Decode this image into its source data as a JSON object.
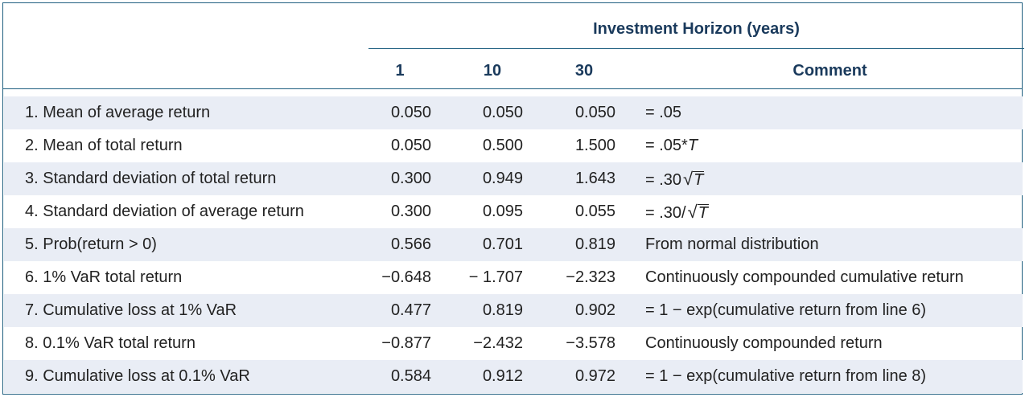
{
  "table": {
    "group_header": "Investment Horizon (years)",
    "columns": [
      "1",
      "10",
      "30",
      "Comment"
    ],
    "rows": [
      {
        "label": "1. Mean of average return",
        "v1": "0.050",
        "v2": "0.050",
        "v3": "0.050",
        "comment": "= .05"
      },
      {
        "label": "2. Mean of total return",
        "v1": "0.050",
        "v2": "0.500",
        "v3": "1.500",
        "comment_prefix": "= .05*",
        "comment_var": "T"
      },
      {
        "label": "3. Standard deviation of total return",
        "v1": "0.300",
        "v2": "0.949",
        "v3": "1.643",
        "comment_prefix": "= .30",
        "comment_sqrt": "√",
        "comment_var": "T"
      },
      {
        "label": "4. Standard deviation of average return",
        "v1": "0.300",
        "v2": "0.095",
        "v3": "0.055",
        "comment_prefix": "= .30/",
        "comment_sqrt": "√",
        "comment_var": "T"
      },
      {
        "label": "5. Prob(return > 0)",
        "v1": "0.566",
        "v2": "0.701",
        "v3": "0.819",
        "comment": "From normal distribution"
      },
      {
        "label": "6. 1% VaR total return",
        "v1": "−0.648",
        "v2": "− 1.707",
        "v3": "−2.323",
        "comment": "Continuously compounded cumulative return"
      },
      {
        "label": "7. Cumulative loss at 1% VaR",
        "v1": "0.477",
        "v2": "0.819",
        "v3": "0.902",
        "comment": "= 1 − exp(cumulative return from line 6)"
      },
      {
        "label": "8. 0.1% VaR total return",
        "v1": "−0.877",
        "v2": "−2.432",
        "v3": "−3.578",
        "comment": "Continuously compounded return"
      },
      {
        "label": "9. Cumulative loss at 0.1% VaR",
        "v1": "0.584",
        "v2": "0.912",
        "v3": "0.972",
        "comment": "= 1 − exp(cumulative return from line 8)"
      }
    ]
  },
  "colors": {
    "header_text": "#1a3a5c",
    "rule": "#1f5f80",
    "shaded_row": "#e9edf5"
  }
}
